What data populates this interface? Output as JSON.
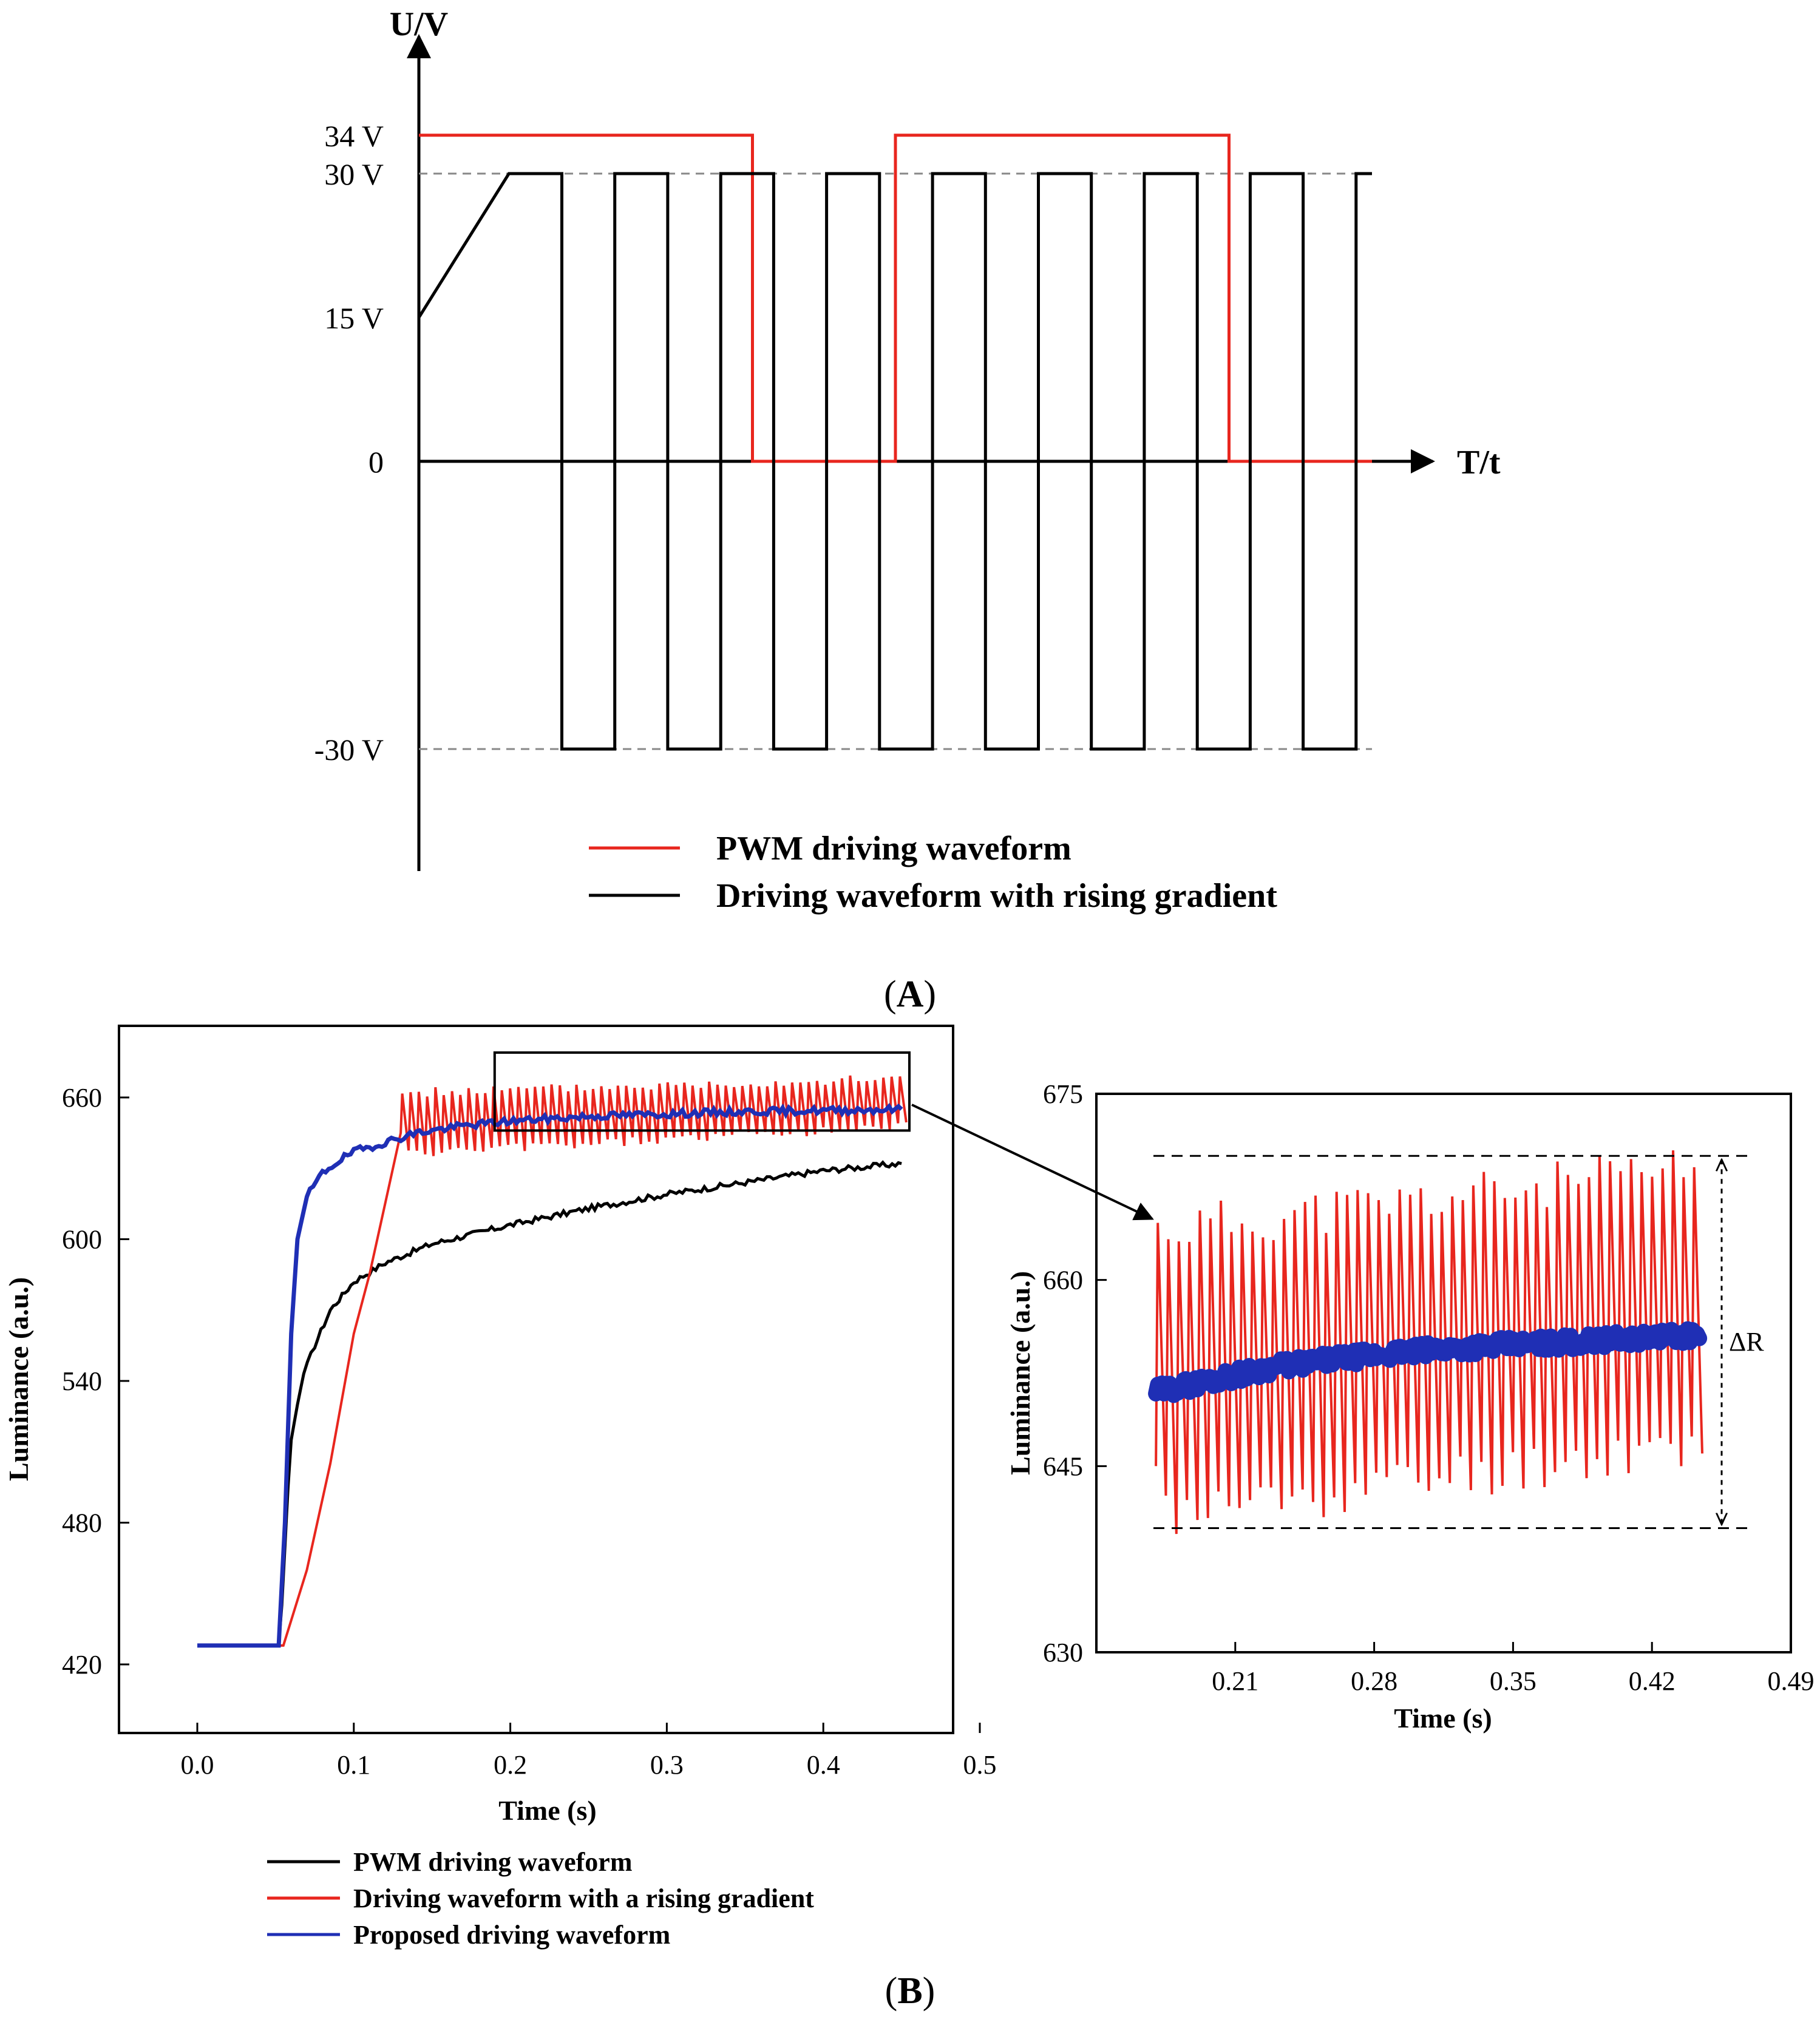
{
  "panels": {
    "a_label": "A",
    "b_label": "B"
  },
  "chart_data": [
    {
      "type": "line",
      "ylabel": "U/V",
      "xlabel": "T/t",
      "yticks": [
        "34 V",
        "30 V",
        "15 V",
        "0",
        "-30 V"
      ],
      "ytick_values": [
        34,
        30,
        15,
        0,
        -30
      ],
      "reference_lines": [
        30,
        -30
      ],
      "grid": false,
      "legend_position": "bottom",
      "series": [
        {
          "name": "PWM driving waveform",
          "color": "#e8261e",
          "x": [
            0,
            0,
            3.15,
            3.15,
            4.5,
            4.5,
            7.65,
            7.65,
            9.0
          ],
          "y": [
            34,
            34,
            34,
            0,
            0,
            34,
            34,
            0,
            0
          ]
        },
        {
          "name": "Driving waveform with rising gradient",
          "color": "#000000",
          "x": [
            0,
            0.85,
            1.35,
            1.35,
            1.85,
            1.85,
            2.35,
            2.35,
            2.85,
            2.85,
            3.35,
            3.35,
            3.85,
            3.85,
            4.35,
            4.35,
            4.85,
            4.85,
            5.35,
            5.35,
            5.85,
            5.85,
            6.35,
            6.35,
            6.85,
            6.85,
            7.35,
            7.35,
            7.85,
            7.85,
            8.35,
            8.35,
            8.85,
            8.85,
            9.0
          ],
          "y": [
            15,
            30,
            30,
            -30,
            -30,
            30,
            30,
            -30,
            -30,
            30,
            30,
            -30,
            -30,
            30,
            30,
            -30,
            -30,
            30,
            30,
            -30,
            -30,
            30,
            30,
            -30,
            -30,
            30,
            30,
            -30,
            -30,
            30,
            30,
            -30,
            -30,
            30,
            30
          ]
        }
      ]
    },
    {
      "type": "line",
      "xlabel": "Time (s)",
      "ylabel": "Luminance (a.u.)",
      "xlim": [
        -0.05,
        0.5
      ],
      "ylim": [
        390,
        665
      ],
      "xticks": [
        "0.0",
        "0.1",
        "0.2",
        "0.3",
        "0.4",
        "0.5"
      ],
      "yticks": [
        "420",
        "480",
        "540",
        "600",
        "660"
      ],
      "grid": false,
      "legend_position": "bottom",
      "zoom_box": {
        "x": [
          0.19,
          0.455
        ],
        "y": [
          646,
          679
        ]
      },
      "series": [
        {
          "name": "PWM driving waveform",
          "color": "#000000",
          "x": [
            0,
            0.052,
            0.054,
            0.056,
            0.058,
            0.06,
            0.064,
            0.068,
            0.075,
            0.085,
            0.1,
            0.12,
            0.15,
            0.2,
            0.25,
            0.3,
            0.35,
            0.4,
            0.45
          ],
          "y": [
            428,
            428,
            445,
            470,
            495,
            515,
            530,
            543,
            555,
            570,
            582,
            590,
            598,
            606,
            613,
            619,
            624,
            629,
            632
          ]
        },
        {
          "name": "Driving waveform with a rising gradient",
          "color": "#e8261e",
          "x": [
            0,
            0.055,
            0.07,
            0.085,
            0.1,
            0.11,
            0.12,
            0.13
          ],
          "y": [
            428,
            428,
            460,
            505,
            560,
            585,
            615,
            645
          ],
          "ripple": {
            "x_start": 0.13,
            "x_end": 0.45,
            "period": 0.0053,
            "low_start": 636,
            "low_end": 648,
            "high_start": 662,
            "high_end": 668
          }
        },
        {
          "name": "Proposed driving waveform",
          "color": "#1f2fb5",
          "x": [
            0,
            0.052,
            0.056,
            0.06,
            0.064,
            0.07,
            0.08,
            0.09,
            0.1,
            0.12,
            0.14,
            0.17,
            0.2,
            0.25,
            0.3,
            0.35,
            0.4,
            0.45
          ],
          "y": [
            428,
            428,
            480,
            560,
            600,
            618,
            628,
            633,
            637,
            641,
            645,
            648,
            650,
            652,
            653,
            654,
            654.5,
            655
          ]
        }
      ]
    },
    {
      "type": "line",
      "xlabel": "Time (s)",
      "ylabel": "Luminance (a.u.)",
      "xlim": [
        0.14,
        0.49
      ],
      "ylim": [
        630,
        675
      ],
      "xticks": [
        "0.21",
        "0.28",
        "0.35",
        "0.42",
        "0.49"
      ],
      "yticks": [
        "630",
        "645",
        "660",
        "675"
      ],
      "grid": false,
      "annotation": "ΔR",
      "delta_r_lines": [
        670,
        640
      ],
      "series": [
        {
          "name": "Driving waveform with a rising gradient",
          "color": "#e8261e",
          "ripple": {
            "x_start": 0.17,
            "x_end": 0.445,
            "period": 0.0053,
            "low_start": 641,
            "low_end": 647,
            "high_start": 664,
            "high_end": 669
          }
        },
        {
          "name": "Proposed driving waveform",
          "color": "#1f2fb5",
          "x": [
            0.17,
            0.2,
            0.23,
            0.26,
            0.29,
            0.32,
            0.35,
            0.38,
            0.41,
            0.445
          ],
          "y": [
            651,
            652,
            653,
            653.6,
            654.1,
            654.5,
            654.8,
            655,
            655.3,
            655.6
          ]
        }
      ]
    }
  ]
}
